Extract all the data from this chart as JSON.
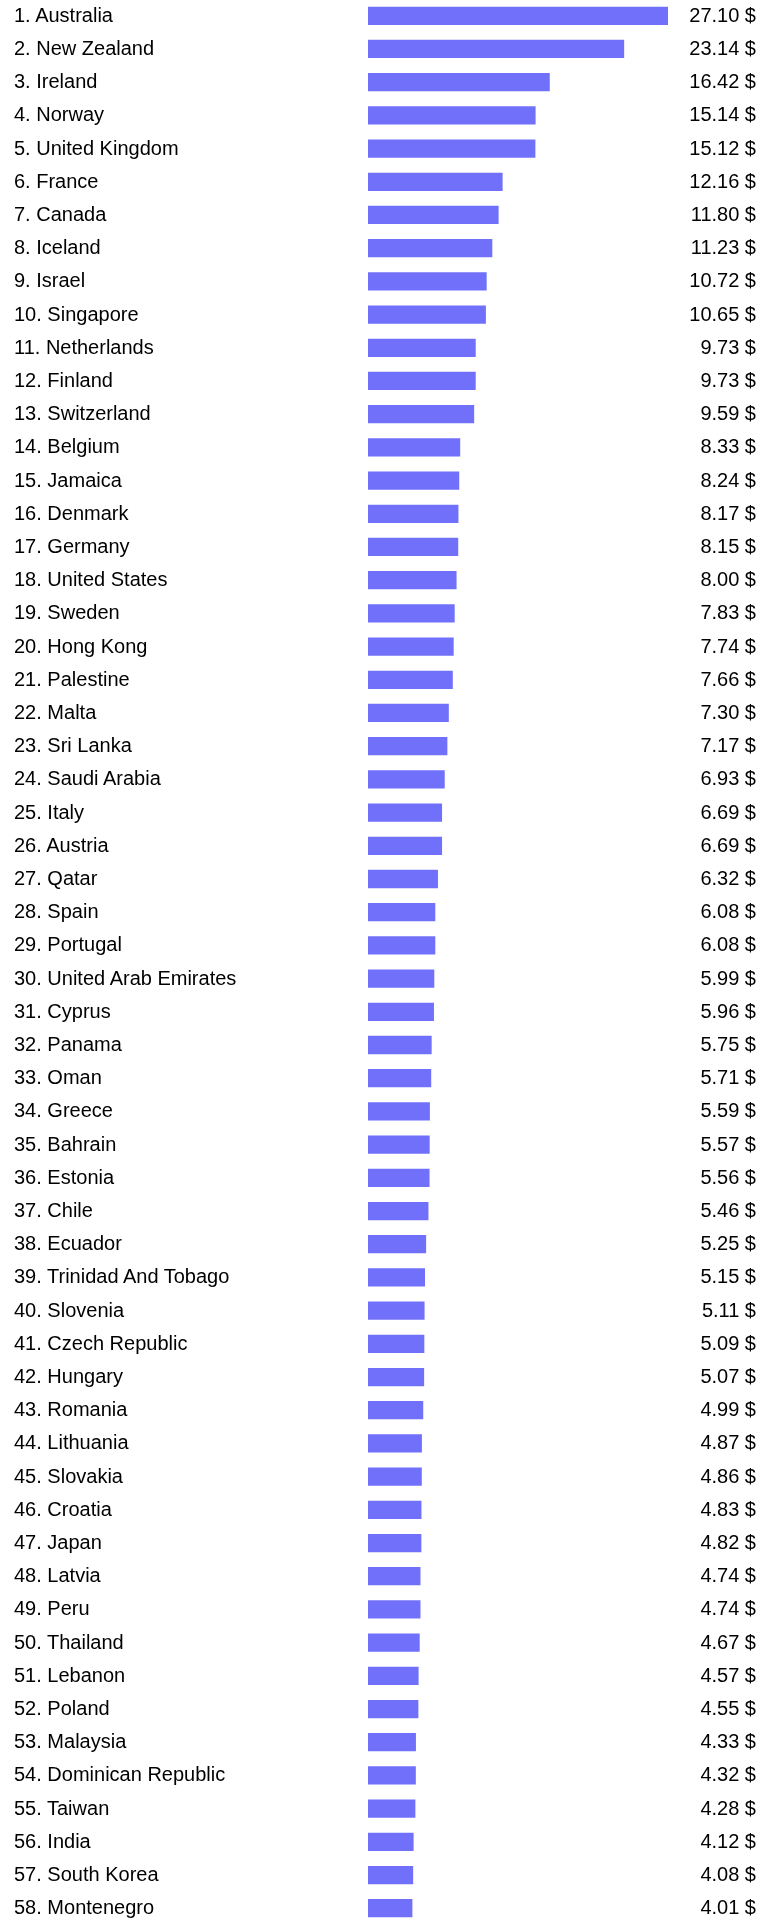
{
  "chart_data": {
    "type": "bar",
    "orientation": "horizontal",
    "color": "#7070fb",
    "categories": [
      "1.  Australia",
      "2.  New Zealand",
      "3.  Ireland",
      "4.  Norway",
      "5.  United Kingdom",
      "6.  France",
      "7.  Canada",
      "8.  Iceland",
      "9.  Israel",
      "10.  Singapore",
      "11.  Netherlands",
      "12.  Finland",
      "13.  Switzerland",
      "14.  Belgium",
      "15.  Jamaica",
      "16.  Denmark",
      "17.  Germany",
      "18.  United States",
      "19.  Sweden",
      "20.  Hong Kong",
      "21.  Palestine",
      "22.  Malta",
      "23.  Sri Lanka",
      "24.  Saudi Arabia",
      "25.  Italy",
      "26.  Austria",
      "27.  Qatar",
      "28.  Spain",
      "29.  Portugal",
      "30.  United Arab Emirates",
      "31.  Cyprus",
      "32.  Panama",
      "33.  Oman",
      "34.  Greece",
      "35.  Bahrain",
      "36.  Estonia",
      "37.  Chile",
      "38.  Ecuador",
      "39.  Trinidad And Tobago",
      "40.  Slovenia",
      "41.  Czech Republic",
      "42.  Hungary",
      "43.  Romania",
      "44.  Lithuania",
      "45.  Slovakia",
      "46.  Croatia",
      "47.  Japan",
      "48.  Latvia",
      "49.  Peru",
      "50.  Thailand",
      "51.  Lebanon",
      "52.  Poland",
      "53.  Malaysia",
      "54.  Dominican Republic",
      "55.  Taiwan",
      "56.  India",
      "57.  South Korea",
      "58.  Montenegro"
    ],
    "values": [
      27.1,
      23.14,
      16.42,
      15.14,
      15.12,
      12.16,
      11.8,
      11.23,
      10.72,
      10.65,
      9.73,
      9.73,
      9.59,
      8.33,
      8.24,
      8.17,
      8.15,
      8.0,
      7.83,
      7.74,
      7.66,
      7.3,
      7.17,
      6.93,
      6.69,
      6.69,
      6.32,
      6.08,
      6.08,
      5.99,
      5.96,
      5.75,
      5.71,
      5.59,
      5.57,
      5.56,
      5.46,
      5.25,
      5.15,
      5.11,
      5.09,
      5.07,
      4.99,
      4.87,
      4.86,
      4.83,
      4.82,
      4.74,
      4.74,
      4.67,
      4.57,
      4.55,
      4.33,
      4.32,
      4.28,
      4.12,
      4.08,
      4.01
    ],
    "value_labels": [
      "27.10 $",
      "23.14 $",
      "16.42 $",
      "15.14 $",
      "15.12 $",
      "12.16 $",
      "11.80 $",
      "11.23 $",
      "10.72 $",
      "10.65 $",
      "9.73 $",
      "9.73 $",
      "9.59 $",
      "8.33 $",
      "8.24 $",
      "8.17 $",
      "8.15 $",
      "8.00 $",
      "7.83 $",
      "7.74 $",
      "7.66 $",
      "7.30 $",
      "7.17 $",
      "6.93 $",
      "6.69 $",
      "6.69 $",
      "6.32 $",
      "6.08 $",
      "6.08 $",
      "5.99 $",
      "5.96 $",
      "5.75 $",
      "5.71 $",
      "5.59 $",
      "5.57 $",
      "5.56 $",
      "5.46 $",
      "5.25 $",
      "5.15 $",
      "5.11 $",
      "5.09 $",
      "5.07 $",
      "4.99 $",
      "4.87 $",
      "4.86 $",
      "4.83 $",
      "4.82 $",
      "4.74 $",
      "4.74 $",
      "4.67 $",
      "4.57 $",
      "4.55 $",
      "4.33 $",
      "4.32 $",
      "4.28 $",
      "4.12 $",
      "4.08 $",
      "4.01 $"
    ]
  }
}
